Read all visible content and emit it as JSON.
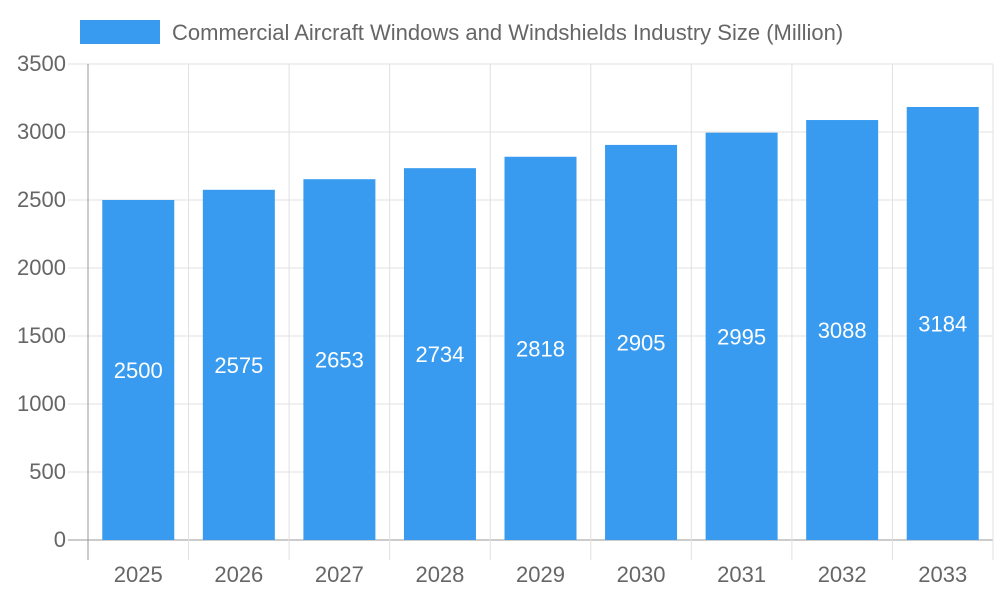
{
  "chart_data": {
    "type": "bar",
    "title": "",
    "xlabel": "",
    "ylabel": "",
    "categories": [
      "2025",
      "2026",
      "2027",
      "2028",
      "2029",
      "2030",
      "2031",
      "2032",
      "2033"
    ],
    "series": [
      {
        "name": "Commercial Aircraft Windows and Windshields Industry Size (Million)",
        "values": [
          2500,
          2575,
          2653,
          2734,
          2818,
          2905,
          2995,
          3088,
          3184
        ]
      }
    ],
    "ylim": [
      0,
      3500
    ],
    "yticks": [
      0,
      500,
      1000,
      1500,
      2000,
      2500,
      3000,
      3500
    ],
    "grid": true,
    "legend": "top",
    "data_labels": true,
    "colors": {
      "bar": "#389BEF",
      "grid": "#E0E0E0",
      "axis": "#999999",
      "text": "#666666",
      "label": "#FFFFFF"
    }
  }
}
